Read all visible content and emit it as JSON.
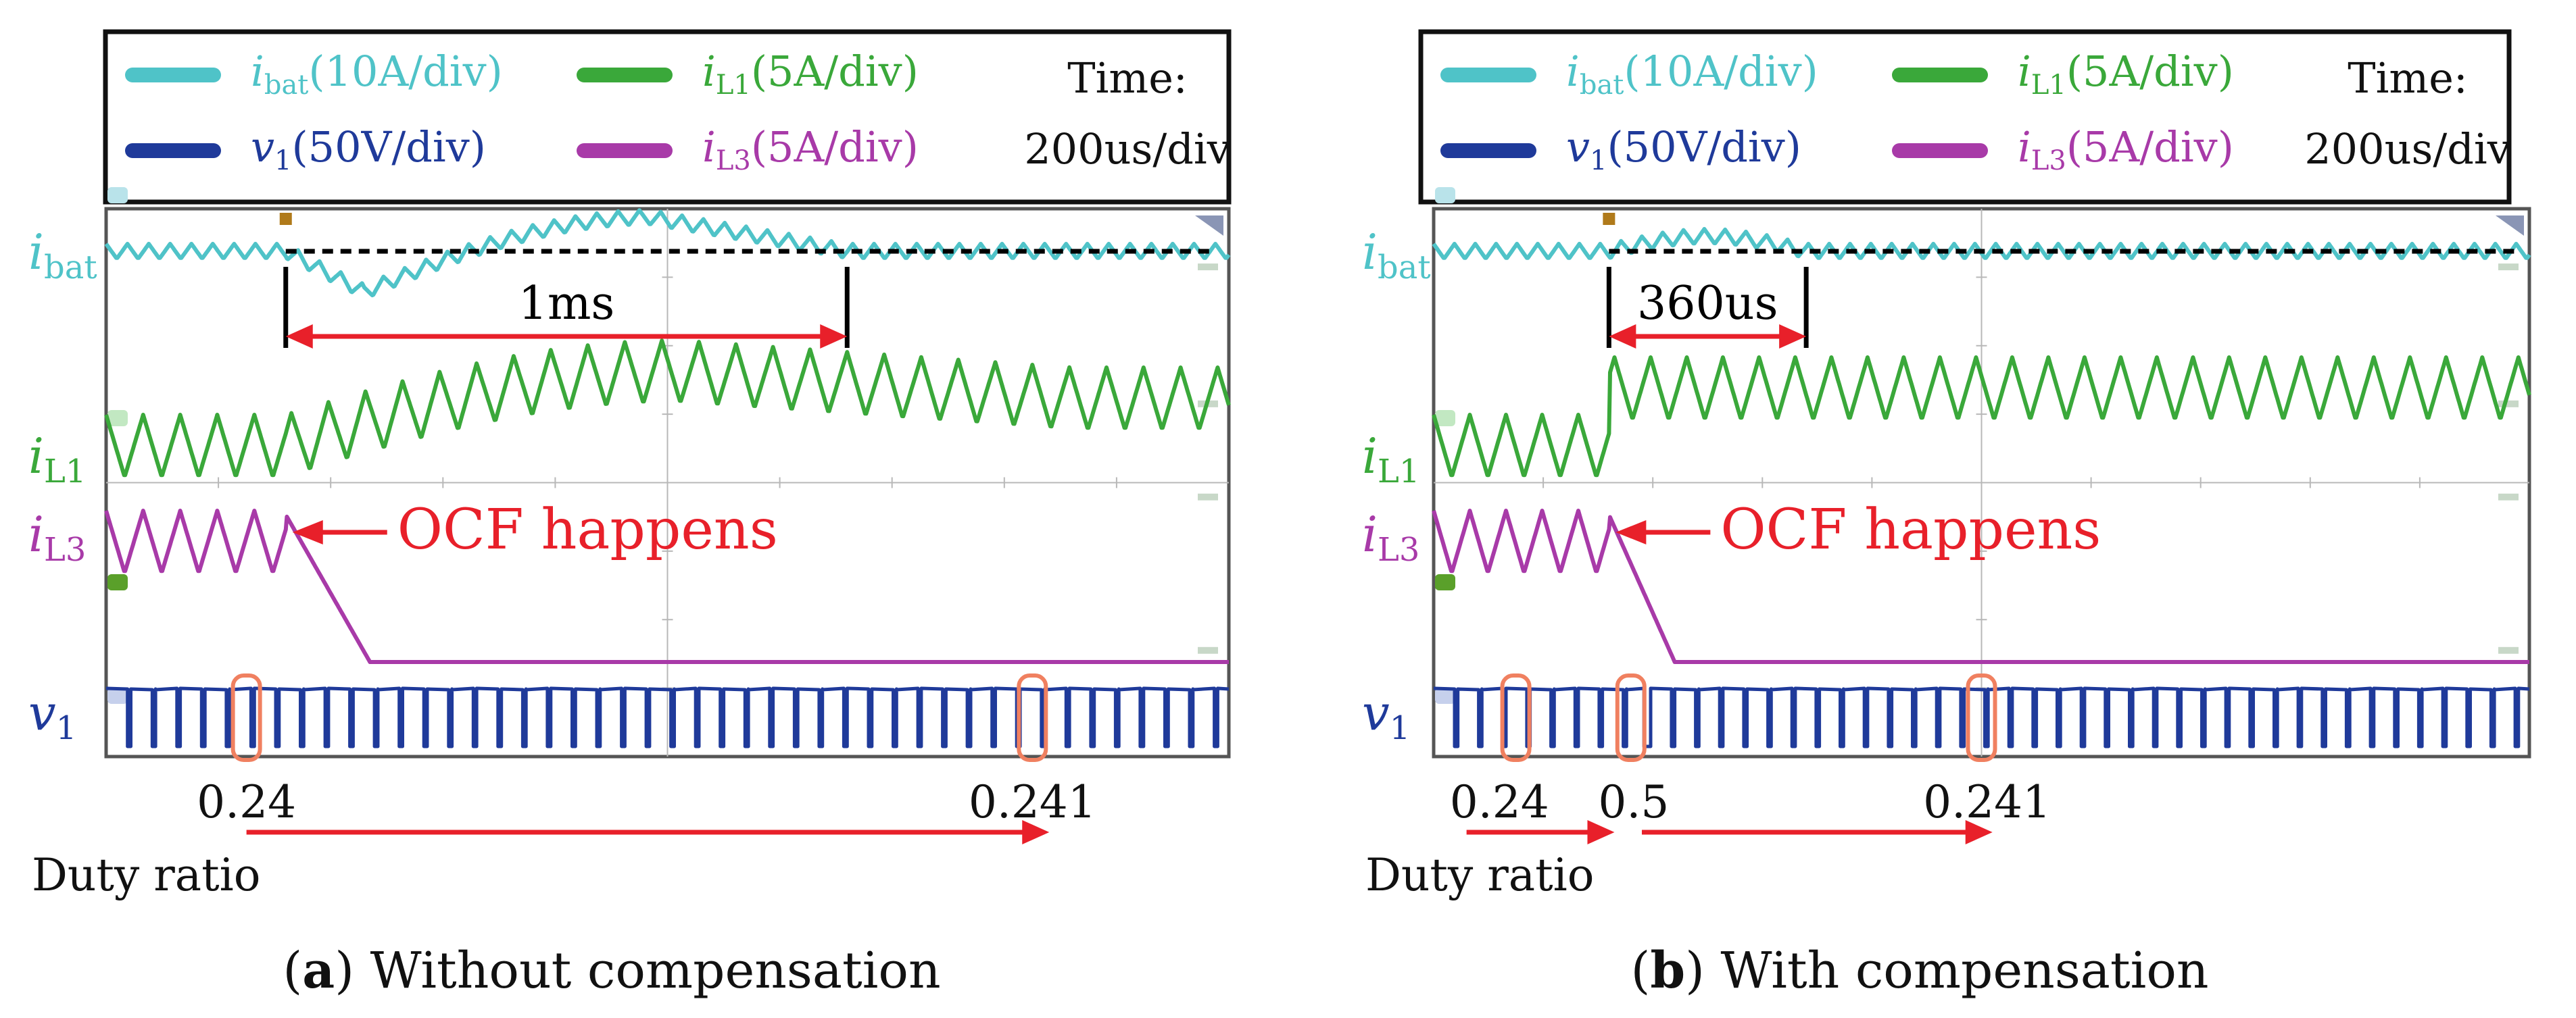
{
  "figure": {
    "scope": {
      "scope_bg": "#ffffff",
      "grid_color": "#b8b8b8",
      "frame_color": "#555555",
      "colors": {
        "ibat": "#4fc3c8",
        "iL1": "#3aa83a",
        "iL3": "#a83aa8",
        "v1": "#1f3a9a",
        "annotation": "#e8202a",
        "marker": "#f08060",
        "ch_marker_ibat": "#b9e3ea",
        "ch_marker_iL1": "#c2e8c2",
        "ch_marker_iL3": "#5aa02a",
        "ch_marker_v1": "#c6d0ec"
      }
    },
    "panels": [
      {
        "legend": {
          "ibat": {
            "sym": "i",
            "sub": "bat",
            "scale": "(10A/div)"
          },
          "iL1": {
            "sym": "i",
            "sub": "L1",
            "scale": "(5A/div)"
          },
          "v1": {
            "sym": "v",
            "sub": "1",
            "scale": "(50V/div)"
          },
          "iL3": {
            "sym": "i",
            "sub": "L3",
            "scale": "(5A/div)"
          },
          "time_line1": "Time:",
          "time_line2": "200us/div"
        },
        "channels": {
          "ibat": {
            "sym": "i",
            "sub": "bat"
          },
          "iL1": {
            "sym": "i",
            "sub": "L1"
          },
          "iL3": {
            "sym": "i",
            "sub": "L3"
          },
          "v1": {
            "sym": "v",
            "sub": "1"
          }
        },
        "annotation": {
          "interval_label": "1ms",
          "interval_us": 1000,
          "event_label": "OCF happens"
        },
        "duty": {
          "axis_label": "Duty ratio",
          "ticks": [
            "0.24",
            "0.241"
          ]
        },
        "caption": {
          "prefix": "(",
          "letter": "a",
          "suffix": ") Without compensation"
        }
      },
      {
        "legend": {
          "ibat": {
            "sym": "i",
            "sub": "bat",
            "scale": "(10A/div)"
          },
          "iL1": {
            "sym": "i",
            "sub": "L1",
            "scale": "(5A/div)"
          },
          "v1": {
            "sym": "v",
            "sub": "1",
            "scale": "(50V/div)"
          },
          "iL3": {
            "sym": "i",
            "sub": "L3",
            "scale": "(5A/div)"
          },
          "time_line1": "Time:",
          "time_line2": "200us/div"
        },
        "channels": {
          "ibat": {
            "sym": "i",
            "sub": "bat"
          },
          "iL1": {
            "sym": "i",
            "sub": "L1"
          },
          "iL3": {
            "sym": "i",
            "sub": "L3"
          },
          "v1": {
            "sym": "v",
            "sub": "1"
          }
        },
        "annotation": {
          "interval_label": "360us",
          "interval_us": 360,
          "event_label": "OCF happens"
        },
        "duty": {
          "axis_label": "Duty ratio",
          "ticks": [
            "0.24",
            "0.5",
            "0.241"
          ]
        },
        "caption": {
          "prefix": "(",
          "letter": "b",
          "suffix": ") With compensation"
        }
      }
    ]
  },
  "chart_data": [
    {
      "type": "line",
      "title": "(a) Without compensation",
      "time_per_div_us": 200,
      "time_divisions": 10,
      "x_unit": "us",
      "xlim": [
        0,
        2000
      ],
      "series": [
        {
          "name": "ibat",
          "scale": "10A/div",
          "shape": "dip after fault at 320us, recovery with overshoot, back to steady state after ~1000us"
        },
        {
          "name": "iL1",
          "scale": "5A/div",
          "shape": "triangular ripple, rises after fault, peaks near 1000us, settles"
        },
        {
          "name": "iL3",
          "scale": "5A/div",
          "shape": "triangular ripple until fault at 320us, ramps to zero by ~450us"
        },
        {
          "name": "v1",
          "scale": "50V/div",
          "shape": "PWM pulse train"
        }
      ],
      "events": [
        {
          "label": "OCF happens",
          "t_us": 320
        },
        {
          "label": "1ms",
          "t_start_us": 320,
          "t_end_us": 1320
        }
      ],
      "duty_ratio": [
        {
          "t_us": 250,
          "value": 0.24
        },
        {
          "t_us": 1650,
          "value": 0.241
        }
      ]
    },
    {
      "type": "line",
      "title": "(b) With compensation",
      "time_per_div_us": 200,
      "time_divisions": 10,
      "x_unit": "us",
      "xlim": [
        0,
        2000
      ],
      "series": [
        {
          "name": "ibat",
          "scale": "10A/div",
          "shape": "nearly flat, small disturbance after fault, recovers within ~360us"
        },
        {
          "name": "iL1",
          "scale": "5A/div",
          "shape": "triangular ripple, steps up at fault time, stays at new level"
        },
        {
          "name": "iL3",
          "scale": "5A/div",
          "shape": "triangular ripple until fault at 320us, ramps to zero by ~430us"
        },
        {
          "name": "v1",
          "scale": "50V/div",
          "shape": "PWM pulse train"
        }
      ],
      "events": [
        {
          "label": "OCF happens",
          "t_us": 320
        },
        {
          "label": "360us",
          "t_start_us": 320,
          "t_end_us": 680
        }
      ],
      "duty_ratio": [
        {
          "t_us": 150,
          "value": 0.24
        },
        {
          "t_us": 360,
          "value": 0.5
        },
        {
          "t_us": 1000,
          "value": 0.241
        }
      ]
    }
  ]
}
